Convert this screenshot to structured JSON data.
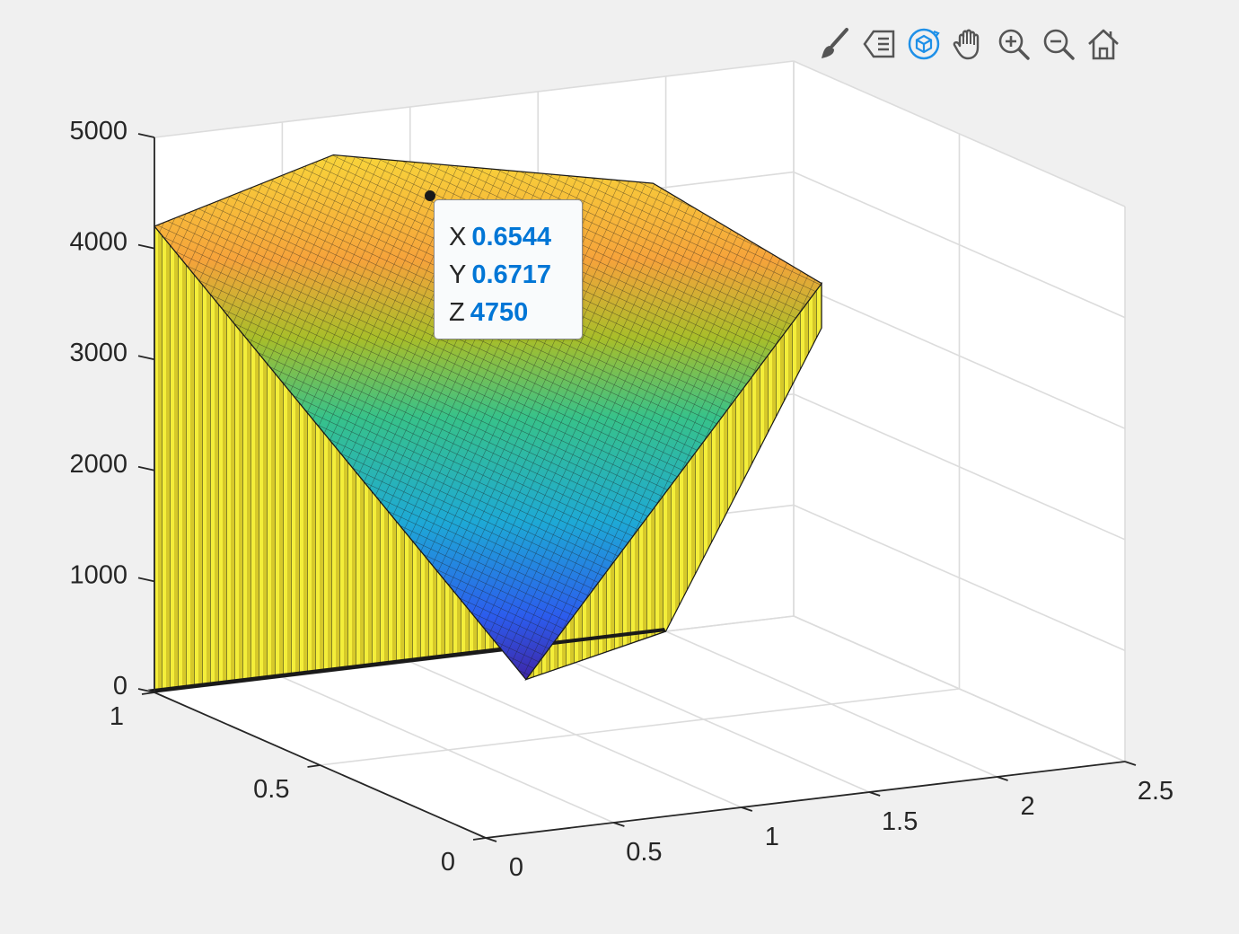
{
  "toolbar": {
    "tools": [
      {
        "name": "brush-icon"
      },
      {
        "name": "data-tip-icon"
      },
      {
        "name": "rotate-3d-icon",
        "active": true
      },
      {
        "name": "pan-hand-icon"
      },
      {
        "name": "zoom-in-icon"
      },
      {
        "name": "zoom-out-icon"
      },
      {
        "name": "restore-view-home-icon"
      }
    ],
    "active_color": "#1e90e8",
    "icon_color": "#555555"
  },
  "datatip": {
    "x_label": "X",
    "x_value": "0.6544",
    "y_label": "Y",
    "y_value": "0.6717",
    "z_label": "Z",
    "z_value": "4750"
  },
  "chart_data": {
    "type": "surface",
    "xlabel": "",
    "ylabel": "",
    "zlabel": "",
    "xlim": [
      0,
      2.5
    ],
    "ylim": [
      0,
      1
    ],
    "zlim": [
      0,
      5000
    ],
    "x_ticks": [
      "0",
      "0.5",
      "1",
      "1.5",
      "2",
      "2.5"
    ],
    "y_ticks": [
      "0",
      "0.5",
      "1"
    ],
    "z_ticks": [
      "0",
      "1000",
      "2000",
      "3000",
      "4000",
      "5000"
    ],
    "grid": true,
    "colormap": "parula",
    "surface_outline": {
      "corner_x0_y1_z": 4200,
      "corner_x2_y1_z": 3300,
      "minimum": {
        "x": 1,
        "y": 0.65,
        "z": 300
      }
    },
    "datatip_point": {
      "x": 0.6544,
      "y": 0.6717,
      "z": 4750
    }
  }
}
